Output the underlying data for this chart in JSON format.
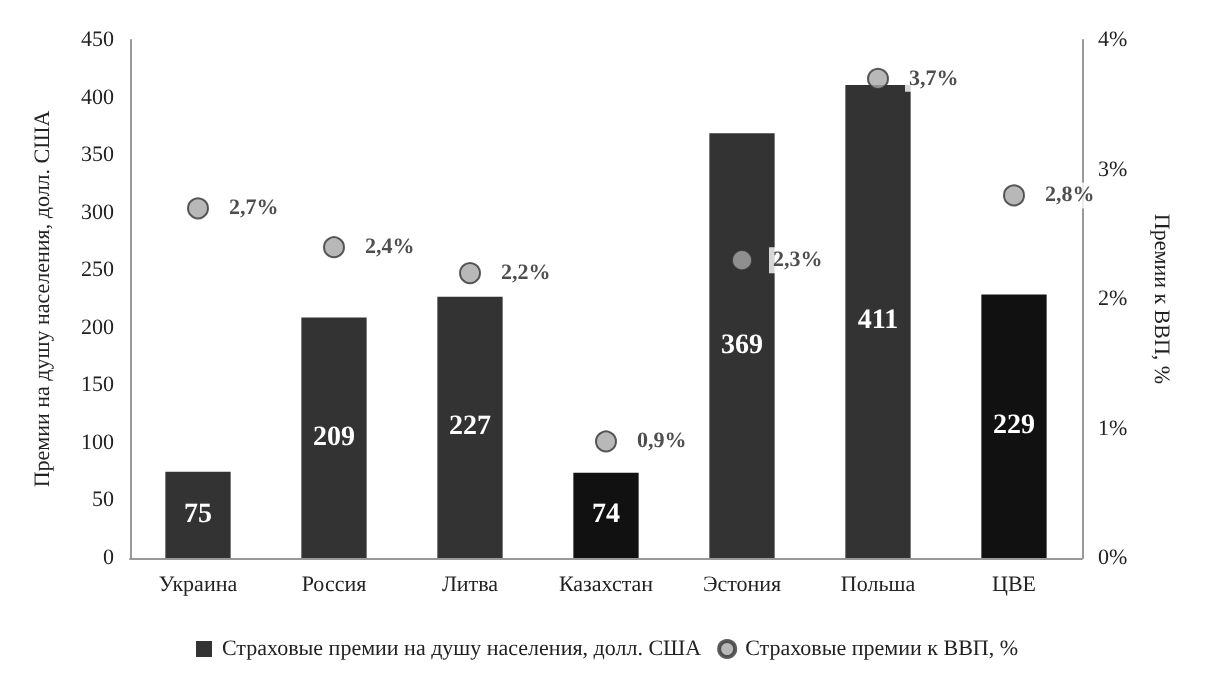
{
  "chart_data": {
    "type": "bar",
    "categories": [
      "Украина",
      "Россия",
      "Литва",
      "Казахстан",
      "Эстония",
      "Польша",
      "ЦВЕ"
    ],
    "series": [
      {
        "name": "Страховые премии на душу населения, долл. США",
        "color": "#333333",
        "colors": [
          "#333333",
          "#333333",
          "#333333",
          "#111111",
          "#333333",
          "#333333",
          "#111111"
        ],
        "values": [
          75,
          209,
          227,
          74,
          369,
          411,
          229
        ],
        "value_labels": [
          "75",
          "209",
          "227",
          "74",
          "369",
          "411",
          "229"
        ]
      },
      {
        "name": "Страховые премии к ВВП, %",
        "type": "scatter",
        "axis": "y2",
        "color": "#a6a6a6",
        "values": [
          2.7,
          2.4,
          2.2,
          0.9,
          2.3,
          3.7,
          2.8
        ],
        "value_labels": [
          "2,7%",
          "2,4%",
          "2,2%",
          "0,9%",
          "2,3%",
          "3,7%",
          "2,8%"
        ]
      }
    ],
    "ylabel": "Премии на душу населения, долл. США",
    "y2label": "Премии к ВВП, %",
    "ylim": [
      0,
      450
    ],
    "yticks": [
      0,
      50,
      100,
      150,
      200,
      250,
      300,
      350,
      400,
      450
    ],
    "y2lim": [
      0,
      4
    ],
    "y2ticks": [
      {
        "value": 0,
        "label": "0%"
      },
      {
        "value": 1,
        "label": "1%"
      },
      {
        "value": 2,
        "label": "2%"
      },
      {
        "value": 3,
        "label": "3%"
      },
      {
        "value": 4,
        "label": "4%"
      }
    ],
    "grid": false,
    "legend": "bottom",
    "marker": "circle"
  }
}
